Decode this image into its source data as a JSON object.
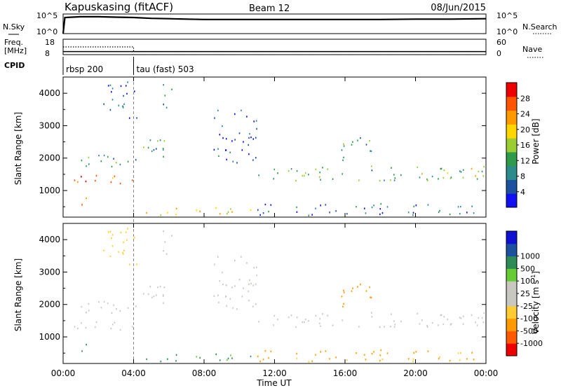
{
  "header": {
    "station": "Kapuskasing (fitACF)",
    "beam": "Beam 12",
    "date": "08/Jun/2015"
  },
  "panels": {
    "nsky": {
      "left_label": "N.Sky",
      "right_label": "N.Search",
      "left_ticks": [
        "10^5",
        "10^0"
      ],
      "right_ticks": [
        "10^5",
        "10^0"
      ]
    },
    "freq": {
      "left_label_1": "Freq.",
      "left_label_2": "[MHz]",
      "right_label": "Nave",
      "left_ticks": [
        "18",
        "8"
      ],
      "right_ticks": [
        "60",
        "0"
      ]
    },
    "cpid": {
      "label": "CPID",
      "modes": [
        {
          "name": "rbsp 200",
          "start_hr": 0
        },
        {
          "name": "tau (fast) 503",
          "start_hr": 4
        }
      ]
    }
  },
  "axes": {
    "time_ticks": [
      "00:00",
      "04:00",
      "08:00",
      "12:00",
      "16:00",
      "20:00",
      "00:00"
    ],
    "xlabel": "Time UT",
    "range_ticks": [
      "1000",
      "2000",
      "3000",
      "4000"
    ],
    "ylabel": "Slant Range [km]"
  },
  "colors": {
    "power": [
      "#1010f0",
      "#1e50a0",
      "#2e8b8b",
      "#2f9a4a",
      "#9acd32",
      "#ffd700",
      "#ff9900",
      "#ff5500",
      "#ee0000"
    ],
    "velocity": [
      "#ee0000",
      "#ff5a00",
      "#ff9a00",
      "#ffcc33",
      "#c8c8c0",
      "#c8c8c0",
      "#66cc33",
      "#2e8b57",
      "#1e50a0",
      "#1010d0"
    ],
    "velocity_ground": "#c8c8c0"
  },
  "chart_data": [
    {
      "type": "line",
      "name": "N.Sky / N.Search",
      "x_range_hours": [
        0,
        24
      ],
      "ylim": [
        "10^0",
        "10^5"
      ],
      "x": [
        0,
        0.1,
        0.5,
        1,
        2,
        3,
        4,
        5,
        6,
        7,
        8,
        9,
        10,
        12,
        14,
        16,
        18,
        20,
        22,
        24
      ],
      "values_log10": [
        0,
        4.1,
        4.2,
        4.3,
        4.3,
        4.2,
        4.1,
        3.9,
        3.8,
        3.7,
        3.6,
        3.6,
        3.6,
        3.6,
        3.6,
        3.6,
        3.6,
        3.7,
        3.7,
        3.8
      ]
    },
    {
      "type": "line",
      "name": "Frequency / Nave",
      "x_range_hours": [
        0,
        24
      ],
      "left_ylim": [
        8,
        18
      ],
      "right_ylim": [
        0,
        60
      ],
      "series": [
        {
          "name": "Freq.",
          "x": [
            0,
            24
          ],
          "values": [
            10,
            10
          ]
        },
        {
          "name": "Nave",
          "x": [
            0,
            4,
            4,
            24
          ],
          "values": [
            30,
            30,
            12,
            12
          ]
        }
      ]
    },
    {
      "type": "heatmap",
      "name": "Power [dB]",
      "x_range_hours": [
        0,
        24
      ],
      "ylim": [
        180,
        4500
      ],
      "colorbar": {
        "label": "Power [dB]",
        "ticks": [
          4,
          8,
          12,
          16,
          20,
          24,
          28
        ],
        "range": [
          0,
          32
        ]
      },
      "regions": [
        {
          "t0": 0.2,
          "t1": 4.0,
          "r0": 1150,
          "r1": 1500,
          "p": 24
        },
        {
          "t0": 0.2,
          "t1": 4.5,
          "r0": 1700,
          "r1": 2100,
          "p": 11
        },
        {
          "t0": 1.0,
          "t1": 1.5,
          "r0": 450,
          "r1": 900,
          "p": 27
        },
        {
          "t0": 4.3,
          "t1": 6.3,
          "r0": 1950,
          "r1": 2650,
          "p": 11
        },
        {
          "t0": 5.6,
          "t1": 6.3,
          "r0": 3550,
          "r1": 4350,
          "p": 9
        },
        {
          "t0": 2.2,
          "t1": 4.2,
          "r0": 3200,
          "r1": 4350,
          "p": 5
        },
        {
          "t0": 4.3,
          "t1": 10.8,
          "r0": 230,
          "r1": 480,
          "p": 20
        },
        {
          "t0": 8.5,
          "t1": 11.0,
          "r0": 1800,
          "r1": 3500,
          "p": 5
        },
        {
          "t0": 11.0,
          "t1": 24.0,
          "r0": 1300,
          "r1": 1750,
          "p": 12
        },
        {
          "t0": 11.0,
          "t1": 24.0,
          "r0": 220,
          "r1": 600,
          "p": 7
        },
        {
          "t0": 15.5,
          "t1": 17.5,
          "r0": 1900,
          "r1": 2700,
          "p": 10
        },
        {
          "t0": 21.5,
          "t1": 24.0,
          "r0": 1350,
          "r1": 1700,
          "p": 20
        }
      ]
    },
    {
      "type": "heatmap",
      "name": "Velocity [m s^-1]",
      "x_range_hours": [
        0,
        24
      ],
      "ylim": [
        180,
        4500
      ],
      "colorbar": {
        "label": "Velocity [m s",
        "label_sup": "-1",
        "label_end": "]",
        "ticks": [
          -1000,
          -500,
          -100,
          -25,
          25,
          100,
          500,
          1000
        ]
      },
      "regions": [
        {
          "t0": 0.2,
          "t1": 4.0,
          "r0": 1150,
          "r1": 1500,
          "v": 0
        },
        {
          "t0": 0.2,
          "t1": 4.5,
          "r0": 1700,
          "r1": 2100,
          "v": 0
        },
        {
          "t0": 1.0,
          "t1": 1.5,
          "r0": 450,
          "r1": 900,
          "v": 150
        },
        {
          "t0": 4.3,
          "t1": 6.3,
          "r0": 1950,
          "r1": 2650,
          "v": 0
        },
        {
          "t0": 5.6,
          "t1": 6.3,
          "r0": 3550,
          "r1": 4350,
          "v": 0
        },
        {
          "t0": 2.2,
          "t1": 4.2,
          "r0": 3200,
          "r1": 4350,
          "v": -50
        },
        {
          "t0": 4.3,
          "t1": 10.8,
          "r0": 230,
          "r1": 480,
          "v": 120
        },
        {
          "t0": 8.5,
          "t1": 11.0,
          "r0": 1800,
          "r1": 3500,
          "v": 0
        },
        {
          "t0": 11.0,
          "t1": 24.0,
          "r0": 1300,
          "r1": 1750,
          "v": 0
        },
        {
          "t0": 11.0,
          "t1": 24.0,
          "r0": 220,
          "r1": 600,
          "v": -120
        },
        {
          "t0": 15.5,
          "t1": 17.5,
          "r0": 1900,
          "r1": 2700,
          "v": -300
        },
        {
          "t0": 21.5,
          "t1": 24.0,
          "r0": 1350,
          "r1": 1700,
          "v": 0
        }
      ]
    }
  ]
}
